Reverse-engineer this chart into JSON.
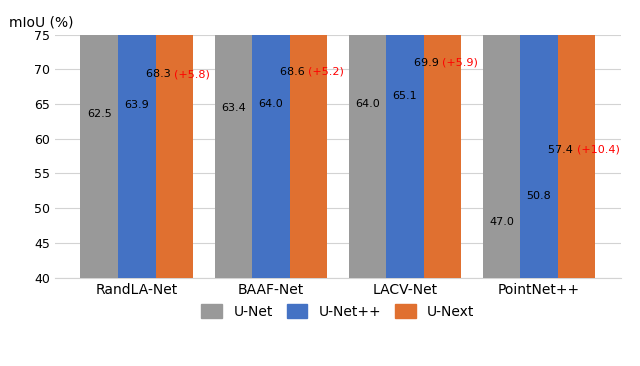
{
  "categories": [
    "RandLA-Net",
    "BAAF-Net",
    "LACV-Net",
    "PointNet++"
  ],
  "unet_values": [
    62.5,
    63.4,
    64.0,
    47.0
  ],
  "unetpp_values": [
    63.9,
    64.0,
    65.1,
    50.8
  ],
  "unext_values": [
    68.3,
    68.6,
    69.9,
    57.4
  ],
  "unext_gains": [
    "5.8",
    "5.2",
    "5.9",
    "10.4"
  ],
  "colors": {
    "unet": "#999999",
    "unetpp": "#4472C4",
    "unext": "#E07030"
  },
  "ylabel": "mIoU (%)",
  "ylim": [
    40,
    75
  ],
  "yticks": [
    40,
    45,
    50,
    55,
    60,
    65,
    70,
    75
  ],
  "legend_labels": [
    "U-Net",
    "U-Net++",
    "U-Next"
  ],
  "bar_width": 0.28,
  "red_color": "#FF0000",
  "value_fontsize": 8.0,
  "background_color": "#FFFFFF"
}
